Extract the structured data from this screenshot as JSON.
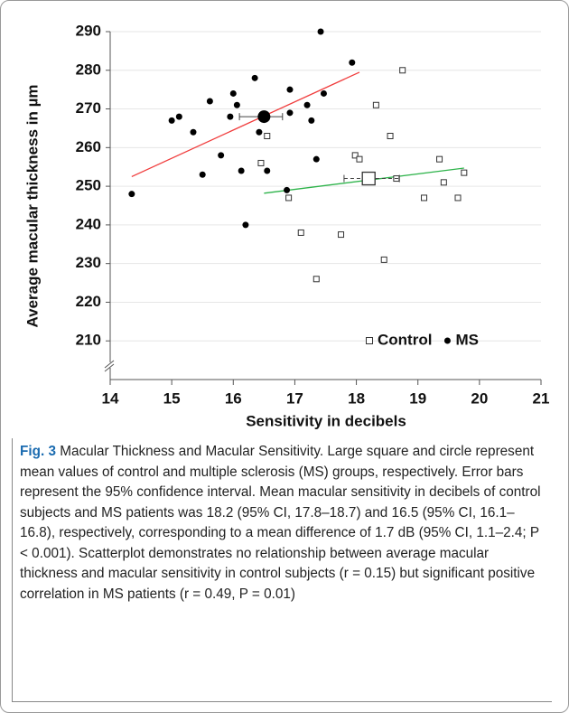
{
  "chart_data": {
    "type": "scatter",
    "ylabel": "Average macular thickness in µm",
    "xlabel": "Sensitivity in decibels",
    "xlim": [
      14,
      21
    ],
    "xticks": [
      14,
      15,
      16,
      17,
      18,
      19,
      20,
      21
    ],
    "ylim": [
      200,
      290
    ],
    "yticks": [
      210,
      220,
      230,
      240,
      250,
      260,
      270,
      280,
      290
    ],
    "grid": true,
    "axis_break": true,
    "legend": "lower right",
    "series": [
      {
        "name": "Control",
        "marker": "square",
        "color": "#333333",
        "line_color": "#2db34a",
        "x": [
          16.45,
          16.55,
          16.9,
          17.1,
          17.35,
          17.75,
          17.98,
          18.05,
          18.32,
          18.45,
          18.55,
          18.65,
          18.75,
          19.1,
          19.35,
          19.42,
          19.65,
          19.75
        ],
        "values": [
          256,
          263,
          247,
          238,
          226,
          237.5,
          258,
          257,
          271,
          231,
          263,
          252,
          280,
          247,
          257,
          251,
          247,
          253.5
        ],
        "mean": {
          "x": 18.2,
          "y": 252,
          "ci": [
            17.8,
            18.7
          ]
        },
        "trend": {
          "x": [
            16.5,
            19.75
          ],
          "y": [
            248.2,
            254.7
          ]
        }
      },
      {
        "name": "MS",
        "marker": "circle",
        "color": "#000000",
        "line_color": "#f03c3c",
        "x": [
          14.35,
          15.0,
          15.12,
          15.35,
          15.5,
          15.62,
          15.8,
          15.95,
          16.0,
          16.06,
          16.13,
          16.2,
          16.35,
          16.42,
          16.55,
          16.87,
          16.92,
          16.92,
          17.2,
          17.27,
          17.35,
          17.42,
          17.47,
          17.93
        ],
        "values": [
          248,
          267,
          268,
          264,
          253,
          272,
          258,
          268,
          274,
          271,
          254,
          240,
          278,
          264,
          254,
          249,
          275,
          269,
          271,
          267,
          257,
          290,
          274,
          282
        ],
        "mean": {
          "x": 16.5,
          "y": 268,
          "ci": [
            16.1,
            16.8
          ]
        },
        "trend": {
          "x": [
            14.35,
            18.05
          ],
          "y": [
            252.5,
            279.5
          ]
        }
      }
    ]
  },
  "caption": {
    "label": "Fig. 3",
    "text": "Macular Thickness and Macular Sensitivity. Large square and circle represent mean values of control and multiple sclerosis (MS) groups, respectively. Error bars represent the 95% confidence interval. Mean macular sensitivity in decibels of control subjects and MS patients was 18.2 (95% CI, 17.8–18.7) and 16.5 (95% CI, 16.1–16.8), respectively, corresponding to a mean difference of 1.7 dB (95% CI, 1.1–2.4; P < 0.001). Scatterplot demonstrates no relationship between average macular thickness and macular sensitivity in control subjects (r = 0.15) but significant positive correlation in MS patients (r = 0.49, P = 0.01)"
  }
}
